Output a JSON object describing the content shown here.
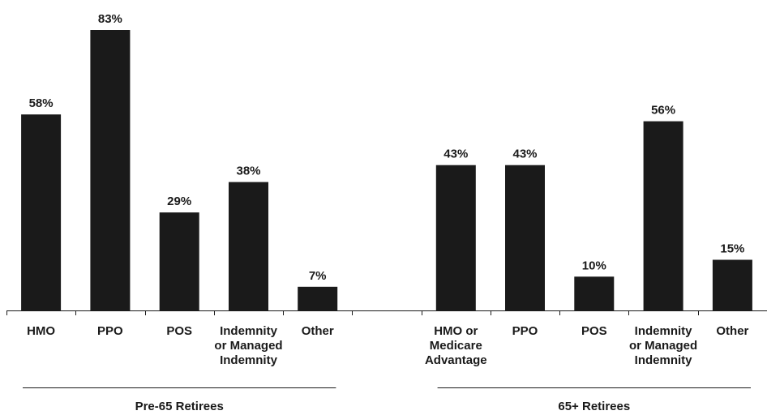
{
  "chart_data": {
    "type": "bar",
    "categories": [
      "HMO",
      "PPO",
      "POS",
      "Indemnity or Managed Indemnity",
      "Other",
      "",
      "HMO or Medicare Advantage",
      "PPO",
      "POS",
      "Indemnity or Managed Indemnity",
      "Other"
    ],
    "category_lines": [
      [
        "HMO"
      ],
      [
        "PPO"
      ],
      [
        "POS"
      ],
      [
        "Indemnity",
        "or Managed",
        "Indemnity"
      ],
      [
        "Other"
      ],
      [],
      [
        "HMO or",
        "Medicare",
        "Advantage"
      ],
      [
        "PPO"
      ],
      [
        "POS"
      ],
      [
        "Indemnity",
        "or Managed",
        "Indemnity"
      ],
      [
        "Other"
      ]
    ],
    "values": [
      58,
      83,
      29,
      38,
      7,
      null,
      43,
      43,
      10,
      56,
      15
    ],
    "value_labels": [
      "58%",
      "83%",
      "29%",
      "38%",
      "7%",
      "",
      "43%",
      "43%",
      "10%",
      "56%",
      "15%"
    ],
    "groups": [
      {
        "name": "Pre-65 Retirees",
        "category_indices": [
          0,
          1,
          2,
          3,
          4
        ]
      },
      {
        "name": "65+ Retirees",
        "category_indices": [
          6,
          7,
          8,
          9,
          10
        ]
      }
    ],
    "ylim": [
      0,
      100
    ],
    "grid": false,
    "bar_color": "#1a1a1a"
  }
}
